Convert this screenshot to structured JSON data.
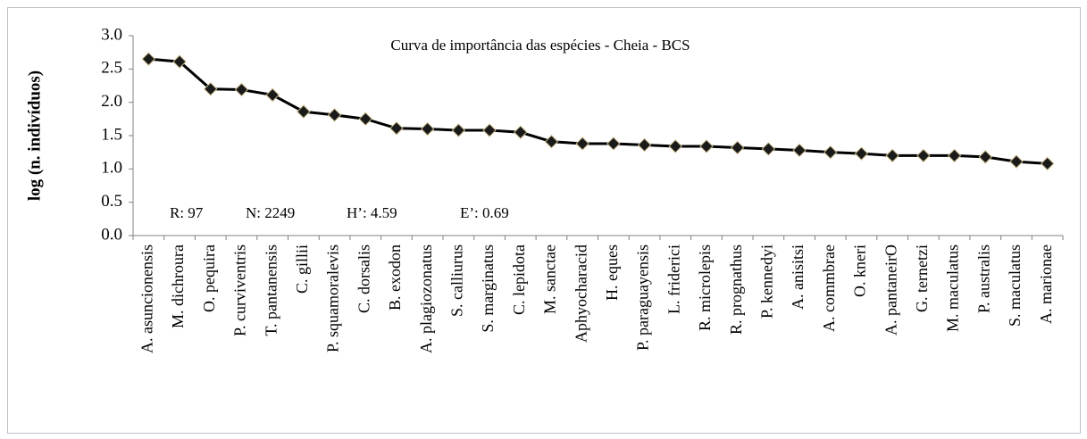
{
  "chart_data": {
    "type": "line",
    "title": "Curva de importância das espécies - Cheia - BCS",
    "y_label": "log (n. indivíduos)",
    "annotations": [
      "R: 97",
      "N: 2249",
      "H’: 4.59",
      "E’: 0.69"
    ],
    "categories": [
      "A. asuncionensis",
      "M. dichroura",
      "O. pequira",
      "P. curviventris",
      "T. pantanensis",
      "C. gillii",
      "P. squamoralevis",
      "C. dorsalis",
      "B. exodon",
      "A. plagiozonatus",
      "S. calliurus",
      "S. marginatus",
      "C. lepidota",
      "M. sanctae",
      "Aphyocharacid",
      "H. eques",
      "P. paraguayensis",
      "L. friderici",
      "R. microlepis",
      "R. prognathus",
      "P. kennedyi",
      "A. anisitsi",
      "A. commbrae",
      "O. kneri",
      "A. pantaneirO",
      "G. ternetzi",
      "M. maculatus",
      "P. australis",
      "S. maculatus",
      "A. marionae"
    ],
    "values": [
      2.65,
      2.61,
      2.2,
      2.19,
      2.11,
      1.86,
      1.81,
      1.75,
      1.61,
      1.6,
      1.58,
      1.58,
      1.55,
      1.41,
      1.38,
      1.38,
      1.36,
      1.34,
      1.34,
      1.32,
      1.3,
      1.28,
      1.25,
      1.23,
      1.2,
      1.2,
      1.2,
      1.18,
      1.11,
      1.08
    ],
    "color": "#000000",
    "marker_color": "#1a1a1a",
    "ylim": [
      0,
      3
    ],
    "yticks": [
      {
        "value": 0,
        "label": "0.0"
      },
      0.5,
      {
        "value": 1,
        "label": "1.0"
      },
      1.5,
      {
        "value": 2,
        "label": "2.0"
      },
      2.5,
      {
        "value": 3,
        "label": "3.0"
      }
    ]
  }
}
